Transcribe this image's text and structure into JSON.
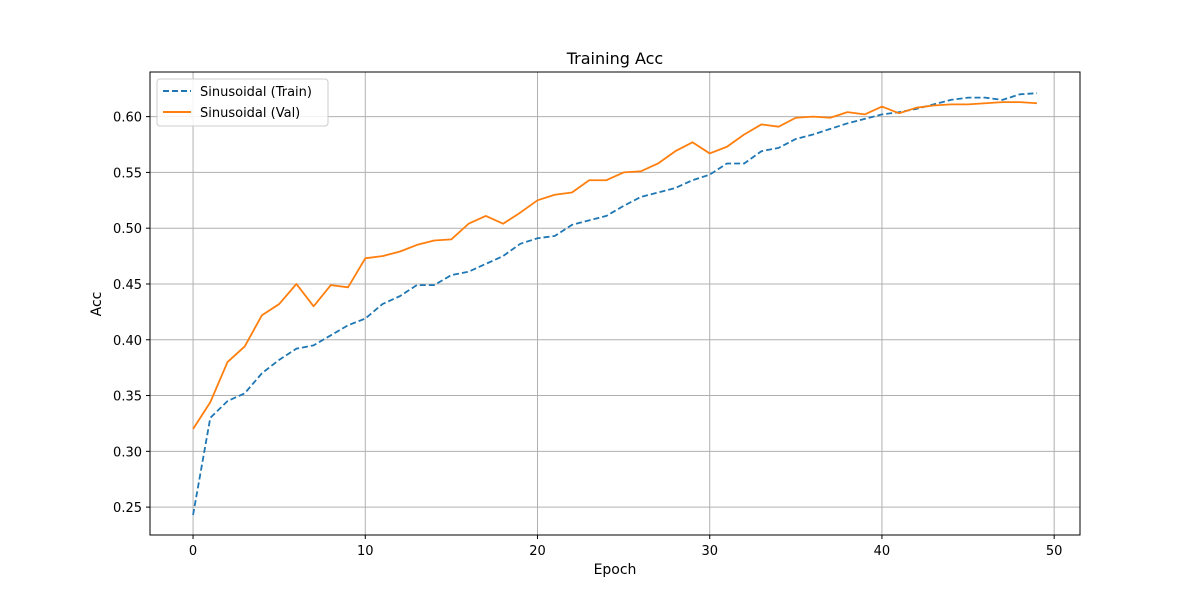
{
  "chart_data": {
    "type": "line",
    "title": "Training Acc",
    "xlabel": "Epoch",
    "ylabel": "Acc",
    "xlim": [
      -2.5,
      51.5
    ],
    "ylim": [
      0.225,
      0.64
    ],
    "xticks": [
      0,
      10,
      20,
      30,
      40,
      50
    ],
    "yticks": [
      0.25,
      0.3,
      0.35,
      0.4,
      0.45,
      0.5,
      0.55,
      0.6
    ],
    "ytick_labels": [
      "0.25",
      "0.30",
      "0.35",
      "0.40",
      "0.45",
      "0.50",
      "0.55",
      "0.60"
    ],
    "grid": true,
    "legend_position": "top-left",
    "x": [
      0,
      1,
      2,
      3,
      4,
      5,
      6,
      7,
      8,
      9,
      10,
      11,
      12,
      13,
      14,
      15,
      16,
      17,
      18,
      19,
      20,
      21,
      22,
      23,
      24,
      25,
      26,
      27,
      28,
      29,
      30,
      31,
      32,
      33,
      34,
      35,
      36,
      37,
      38,
      39,
      40,
      41,
      42,
      43,
      44,
      45,
      46,
      47,
      48,
      49
    ],
    "series": [
      {
        "name": "Sinusoidal (Train)",
        "color": "#1f77b4",
        "dash": "dashed",
        "values": [
          0.243,
          0.33,
          0.345,
          0.352,
          0.37,
          0.382,
          0.392,
          0.395,
          0.404,
          0.413,
          0.419,
          0.432,
          0.439,
          0.449,
          0.449,
          0.458,
          0.461,
          0.468,
          0.475,
          0.486,
          0.491,
          0.493,
          0.503,
          0.507,
          0.511,
          0.52,
          0.528,
          0.532,
          0.536,
          0.543,
          0.548,
          0.558,
          0.558,
          0.569,
          0.572,
          0.58,
          0.584,
          0.589,
          0.594,
          0.598,
          0.602,
          0.604,
          0.607,
          0.611,
          0.615,
          0.617,
          0.617,
          0.615,
          0.62,
          0.621
        ]
      },
      {
        "name": "Sinusoidal (Val)",
        "color": "#ff7f0e",
        "dash": "solid",
        "values": [
          0.32,
          0.344,
          0.38,
          0.394,
          0.422,
          0.432,
          0.45,
          0.43,
          0.449,
          0.447,
          0.473,
          0.475,
          0.479,
          0.485,
          0.489,
          0.49,
          0.504,
          0.511,
          0.504,
          0.514,
          0.525,
          0.53,
          0.532,
          0.543,
          0.543,
          0.55,
          0.551,
          0.558,
          0.569,
          0.577,
          0.567,
          0.573,
          0.584,
          0.593,
          0.591,
          0.599,
          0.6,
          0.599,
          0.604,
          0.602,
          0.609,
          0.603,
          0.608,
          0.61,
          0.611,
          0.611,
          0.612,
          0.613,
          0.613,
          0.612
        ]
      }
    ]
  }
}
